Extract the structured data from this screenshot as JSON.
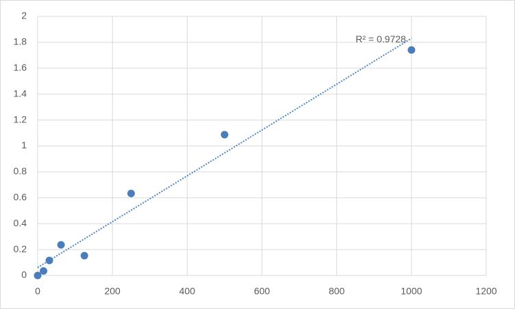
{
  "chart_data": {
    "type": "scatter",
    "x": [
      0,
      15.625,
      31.25,
      62.5,
      125,
      250,
      500,
      1000
    ],
    "values": [
      0,
      0.035,
      0.116,
      0.237,
      0.153,
      0.633,
      1.087,
      1.741
    ],
    "color": "#4a7ebb",
    "trendline": {
      "type": "linear",
      "color": "#4a86c8",
      "label": "R² = 0.9728"
    },
    "xlim": [
      0,
      1200
    ],
    "xticks": [
      0,
      200,
      400,
      600,
      800,
      1000,
      1200
    ],
    "ylim": [
      0,
      2
    ],
    "yticks": [
      0,
      0.2,
      0.4,
      0.6,
      0.8,
      1,
      1.2,
      1.4,
      1.6,
      1.8,
      2
    ],
    "grid": true
  }
}
